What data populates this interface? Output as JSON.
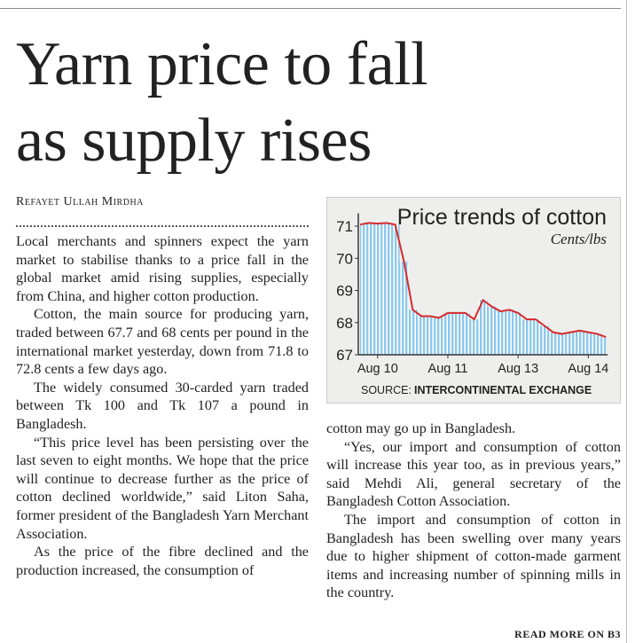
{
  "article": {
    "headline": [
      "Yarn price to fall",
      "as supply rises"
    ],
    "byline": "Refayet Ullah Mirdha",
    "left_paragraphs": [
      "Local merchants and spinners expect the yarn market to stabilise thanks to a price fall in the global market amid rising supplies, especially from China, and higher cotton production.",
      "Cotton, the main source for producing yarn, traded between 67.7 and 68 cents per pound in the international market yesterday, down from 71.8 to 72.8 cents a few days ago.",
      "The widely consumed 30-carded yarn traded between Tk 100 and Tk 107 a pound in Bangladesh.",
      "“This price level has been persisting over the last seven to eight months. We hope that the price will continue to decrease further as the price of cotton declined worldwide,” said Liton Saha, former president of the Bangladesh Yarn Merchant Association.",
      "As the price of the fibre declined and the production increased, the consumption of"
    ],
    "right_paragraphs": [
      "cotton may go up in Bangladesh.",
      "“Yes, our import and consumption of cotton will increase this year too, as in previous years,” said Mehdi Ali, general secretary of the Bangladesh Cotton Association.",
      "The import and consumption of cotton in Bangladesh has been swelling over many years due to higher shipment of cotton-made garment items and increasing number of spinning mills in the country."
    ],
    "read_more": "READ MORE ON B3"
  },
  "chart_data": {
    "type": "bar-line",
    "title": "Price trends of cotton",
    "unit": "Cents/lbs",
    "source_label": "SOURCE:",
    "source": "INTERCONTINENTAL EXCHANGE",
    "categories": [
      null,
      null,
      "Aug 10",
      null,
      null,
      null,
      null,
      null,
      null,
      null,
      "Aug 11",
      null,
      null,
      null,
      null,
      null,
      null,
      null,
      "Aug 13",
      null,
      null,
      null,
      null,
      null,
      null,
      null,
      "Aug 14",
      null,
      null
    ],
    "series": [
      {
        "color": "#d62a2a",
        "bar_color": "#8cc8ee",
        "values": [
          71.05,
          71.1,
          71.08,
          71.1,
          71.05,
          69.9,
          68.4,
          68.2,
          68.2,
          68.15,
          68.3,
          68.3,
          68.3,
          68.1,
          68.7,
          68.5,
          68.35,
          68.4,
          68.3,
          68.1,
          68.1,
          67.9,
          67.7,
          67.65,
          67.7,
          67.75,
          67.7,
          67.65,
          67.55
        ]
      }
    ],
    "ylim": [
      67,
      71.4
    ],
    "yticks": [
      67,
      68,
      69,
      70,
      71
    ]
  }
}
